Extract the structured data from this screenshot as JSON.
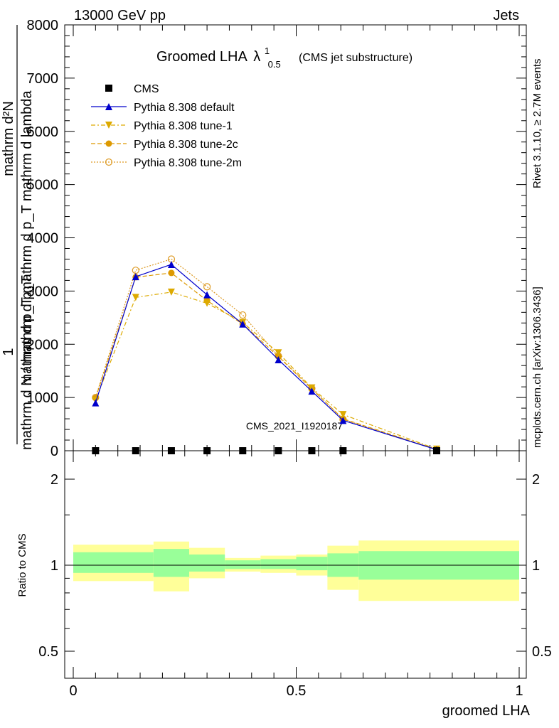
{
  "header": {
    "left": "13000 GeV pp",
    "right": "Jets"
  },
  "chart_data": [
    {
      "type": "line",
      "title_main": "Groomed LHA",
      "title_symbol": "λ",
      "title_sup": "1",
      "title_sub": "0.5",
      "subtitle": "(CMS jet substructure)",
      "ylabel_numerator": "mathrm d²N",
      "ylabel_denominator": "mathrm d p_T mathrm d p_T mathrm d lambda",
      "ylabel_prefix_num": "1",
      "ylabel_prefix_den": "mathrm d N / mathrm d p_T",
      "ylim": [
        0,
        8000
      ],
      "xlim": [
        -0.025,
        1.0
      ],
      "yticks": [
        0,
        1000,
        2000,
        3000,
        4000,
        5000,
        6000,
        7000,
        8000
      ],
      "ytick_labels": [
        "0",
        "1000",
        "2000",
        "3000",
        "4000",
        "5000",
        "6000",
        "7000",
        "8000"
      ],
      "watermark": "CMS_2021_I1920187",
      "right_text_top": "Rivet 3.1.10, ≥ 2.7M events",
      "right_text_bottom": "mcplots.cern.ch [arXiv:1306.3436]",
      "legend_position": "top-left",
      "x": [
        0.05,
        0.14,
        0.22,
        0.3,
        0.38,
        0.46,
        0.535,
        0.605,
        0.815
      ],
      "series": [
        {
          "name": "CMS",
          "color": "#000000",
          "marker": "square",
          "values": [
            0,
            0,
            0,
            0,
            0,
            0,
            0,
            0,
            0
          ]
        },
        {
          "name": "Pythia 8.308 default",
          "color": "#0000cc",
          "marker": "triangle-up",
          "dash": "",
          "values": [
            900,
            3270,
            3500,
            2930,
            2380,
            1710,
            1120,
            570,
            20
          ]
        },
        {
          "name": "Pythia 8.308 tune-1",
          "color": "#ddaa00",
          "marker": "triangle-down",
          "dash": "6,3,2,3",
          "values": [
            950,
            2880,
            2980,
            2770,
            2410,
            1840,
            1180,
            680,
            30
          ]
        },
        {
          "name": "Pythia 8.308 tune-2c",
          "color": "#dd9900",
          "marker": "circle-filled",
          "dash": "6,3",
          "values": [
            990,
            3260,
            3340,
            2820,
            2380,
            1770,
            1160,
            600,
            25
          ]
        },
        {
          "name": "Pythia 8.308 tune-2m",
          "color": "#dd9922",
          "marker": "circle-open",
          "dash": "2,2",
          "values": [
            1000,
            3390,
            3600,
            3080,
            2550,
            1780,
            1170,
            590,
            22
          ]
        }
      ]
    },
    {
      "type": "area",
      "ylabel": "Ratio to CMS",
      "xlabel": "groomed LHA",
      "ylim": [
        0.4,
        2.3
      ],
      "yticks": [
        0.5,
        1,
        2
      ],
      "ytick_labels": [
        "0.5",
        "1",
        "2"
      ],
      "xticks": [
        0,
        0.5,
        1
      ],
      "xtick_labels": [
        "0",
        "0.5",
        "1"
      ],
      "reference_line": 1,
      "bins": [
        {
          "x0": 0.0,
          "x1": 0.18,
          "inner": [
            0.94,
            1.11
          ],
          "outer": [
            0.88,
            1.18
          ]
        },
        {
          "x0": 0.18,
          "x1": 0.26,
          "inner": [
            0.91,
            1.14
          ],
          "outer": [
            0.81,
            1.21
          ]
        },
        {
          "x0": 0.26,
          "x1": 0.34,
          "inner": [
            0.95,
            1.09
          ],
          "outer": [
            0.9,
            1.15
          ]
        },
        {
          "x0": 0.34,
          "x1": 0.42,
          "inner": [
            0.97,
            1.04
          ],
          "outer": [
            0.95,
            1.06
          ]
        },
        {
          "x0": 0.42,
          "x1": 0.5,
          "inner": [
            0.97,
            1.05
          ],
          "outer": [
            0.94,
            1.08
          ]
        },
        {
          "x0": 0.5,
          "x1": 0.57,
          "inner": [
            0.96,
            1.07
          ],
          "outer": [
            0.92,
            1.09
          ]
        },
        {
          "x0": 0.57,
          "x1": 0.64,
          "inner": [
            0.91,
            1.1
          ],
          "outer": [
            0.82,
            1.17
          ]
        },
        {
          "x0": 0.64,
          "x1": 1.0,
          "inner": [
            0.89,
            1.12
          ],
          "outer": [
            0.75,
            1.22
          ]
        }
      ],
      "inner_color": "#99ff99",
      "outer_color": "#ffff99"
    }
  ]
}
